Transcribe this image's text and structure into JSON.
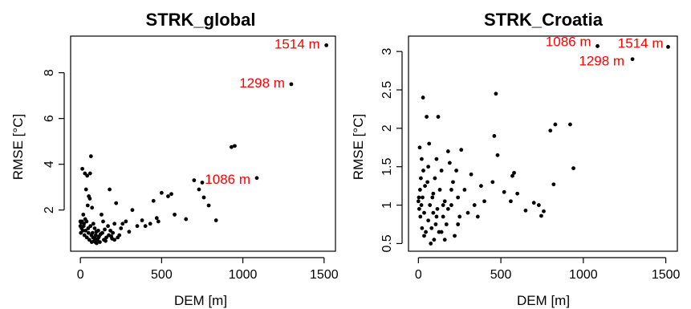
{
  "chart_data": [
    {
      "type": "scatter",
      "title": "STRK_global",
      "xlabel": "DEM [m]",
      "ylabel": "RMSE [°C]",
      "xlim": [
        -60,
        1570
      ],
      "ylim": [
        0.2,
        9.6
      ],
      "xticks": [
        0,
        500,
        1000,
        1500
      ],
      "yticks": [
        2,
        4,
        6,
        8
      ],
      "point_color": "#000000",
      "annotation_color": "#ff0000",
      "annotations": [
        {
          "text": "1514 m",
          "x": 1514,
          "y": 9.2
        },
        {
          "text": "1298 m",
          "x": 1298,
          "y": 7.5
        },
        {
          "text": "1086 m",
          "x": 1086,
          "y": 3.4
        }
      ],
      "points": [
        [
          1514,
          9.2
        ],
        [
          1298,
          7.5
        ],
        [
          1086,
          3.4
        ],
        [
          950,
          4.8
        ],
        [
          930,
          4.75
        ],
        [
          835,
          1.55
        ],
        [
          790,
          2.2
        ],
        [
          760,
          2.55
        ],
        [
          750,
          3.2
        ],
        [
          730,
          2.9
        ],
        [
          700,
          3.3
        ],
        [
          650,
          1.6
        ],
        [
          580,
          1.8
        ],
        [
          560,
          2.7
        ],
        [
          540,
          2.6
        ],
        [
          500,
          2.75
        ],
        [
          480,
          1.5
        ],
        [
          470,
          1.65
        ],
        [
          450,
          2.4
        ],
        [
          430,
          1.4
        ],
        [
          400,
          1.3
        ],
        [
          380,
          1.55
        ],
        [
          350,
          1.3
        ],
        [
          320,
          2.0
        ],
        [
          300,
          1.05
        ],
        [
          280,
          1.5
        ],
        [
          260,
          1.4
        ],
        [
          250,
          1.2
        ],
        [
          240,
          0.9
        ],
        [
          220,
          2.3
        ],
        [
          210,
          1.4
        ],
        [
          200,
          1.0
        ],
        [
          190,
          0.85
        ],
        [
          180,
          2.9
        ],
        [
          170,
          1.3
        ],
        [
          160,
          0.8
        ],
        [
          150,
          1.15
        ],
        [
          145,
          0.7
        ],
        [
          140,
          1.5
        ],
        [
          130,
          1.8
        ],
        [
          125,
          0.95
        ],
        [
          120,
          0.6
        ],
        [
          115,
          0.85
        ],
        [
          110,
          1.1
        ],
        [
          105,
          0.7
        ],
        [
          100,
          0.55
        ],
        [
          95,
          0.9
        ],
        [
          90,
          0.75
        ],
        [
          88,
          1.2
        ],
        [
          85,
          0.65
        ],
        [
          80,
          1.4
        ],
        [
          78,
          0.8
        ],
        [
          75,
          1.0
        ],
        [
          72,
          2.1
        ],
        [
          70,
          0.6
        ],
        [
          68,
          0.9
        ],
        [
          65,
          4.35
        ],
        [
          62,
          1.3
        ],
        [
          60,
          3.6
        ],
        [
          58,
          2.5
        ],
        [
          55,
          0.7
        ],
        [
          52,
          2.6
        ],
        [
          50,
          1.0
        ],
        [
          48,
          1.2
        ],
        [
          45,
          2.2
        ],
        [
          42,
          3.5
        ],
        [
          40,
          0.8
        ],
        [
          38,
          1.5
        ],
        [
          35,
          2.9
        ],
        [
          32,
          1.1
        ],
        [
          30,
          1.6
        ],
        [
          28,
          3.6
        ],
        [
          25,
          0.9
        ],
        [
          22,
          1.4
        ],
        [
          20,
          1.3
        ],
        [
          18,
          1.8
        ],
        [
          15,
          1.1
        ],
        [
          12,
          3.8
        ],
        [
          10,
          1.5
        ],
        [
          8,
          1.2
        ],
        [
          5,
          1.45
        ],
        [
          3,
          1.0
        ],
        [
          0,
          1.3
        ],
        [
          0,
          1.5
        ],
        [
          210,
          0.7
        ],
        [
          230,
          0.8
        ],
        [
          135,
          1.0
        ],
        [
          155,
          0.65
        ],
        [
          175,
          0.9
        ],
        [
          112,
          0.8
        ],
        [
          98,
          1.05
        ],
        [
          92,
          0.6
        ],
        [
          185,
          1.1
        ],
        [
          195,
          0.75
        ]
      ]
    },
    {
      "type": "scatter",
      "title": "STRK_Croatia",
      "xlabel": "DEM [m]",
      "ylabel": "RMSE [°C]",
      "xlim": [
        -60,
        1570
      ],
      "ylim": [
        0.4,
        3.2
      ],
      "xticks": [
        0,
        500,
        1000,
        1500
      ],
      "yticks": [
        0.5,
        1.0,
        1.5,
        2.0,
        2.5,
        3.0
      ],
      "point_color": "#000000",
      "annotation_color": "#ff0000",
      "annotations": [
        {
          "text": "1086 m",
          "x": 1086,
          "y": 3.07
        },
        {
          "text": "1514 m",
          "x": 1514,
          "y": 3.06
        },
        {
          "text": "1298 m",
          "x": 1298,
          "y": 2.9
        }
      ],
      "points": [
        [
          1514,
          3.06
        ],
        [
          1086,
          3.07
        ],
        [
          1298,
          2.9
        ],
        [
          940,
          1.48
        ],
        [
          920,
          2.05
        ],
        [
          830,
          2.05
        ],
        [
          800,
          1.97
        ],
        [
          820,
          1.27
        ],
        [
          760,
          0.92
        ],
        [
          745,
          0.86
        ],
        [
          730,
          1.0
        ],
        [
          700,
          1.03
        ],
        [
          650,
          0.93
        ],
        [
          600,
          1.15
        ],
        [
          580,
          1.42
        ],
        [
          570,
          1.38
        ],
        [
          560,
          1.05
        ],
        [
          520,
          1.17
        ],
        [
          480,
          1.65
        ],
        [
          470,
          2.45
        ],
        [
          460,
          1.9
        ],
        [
          450,
          1.3
        ],
        [
          400,
          1.05
        ],
        [
          380,
          1.25
        ],
        [
          360,
          0.85
        ],
        [
          340,
          1.0
        ],
        [
          320,
          1.4
        ],
        [
          300,
          0.9
        ],
        [
          280,
          1.2
        ],
        [
          260,
          1.72
        ],
        [
          250,
          0.85
        ],
        [
          240,
          1.1
        ],
        [
          230,
          1.45
        ],
        [
          220,
          0.6
        ],
        [
          210,
          1.3
        ],
        [
          200,
          1.0
        ],
        [
          190,
          1.55
        ],
        [
          180,
          1.7
        ],
        [
          170,
          0.75
        ],
        [
          160,
          1.05
        ],
        [
          150,
          0.85
        ],
        [
          140,
          1.45
        ],
        [
          130,
          1.2
        ],
        [
          125,
          0.65
        ],
        [
          120,
          2.15
        ],
        [
          115,
          0.95
        ],
        [
          110,
          1.6
        ],
        [
          105,
          0.75
        ],
        [
          100,
          1.35
        ],
        [
          95,
          0.55
        ],
        [
          90,
          0.9
        ],
        [
          85,
          1.1
        ],
        [
          80,
          0.7
        ],
        [
          75,
          0.5
        ],
        [
          70,
          1.0
        ],
        [
          65,
          1.8
        ],
        [
          60,
          0.8
        ],
        [
          55,
          1.3
        ],
        [
          50,
          2.15
        ],
        [
          45,
          0.65
        ],
        [
          40,
          1.25
        ],
        [
          35,
          0.9
        ],
        [
          30,
          1.45
        ],
        [
          28,
          2.4
        ],
        [
          25,
          1.1
        ],
        [
          22,
          0.7
        ],
        [
          20,
          1.6
        ],
        [
          18,
          1.0
        ],
        [
          15,
          1.35
        ],
        [
          12,
          0.85
        ],
        [
          10,
          1.2
        ],
        [
          8,
          1.75
        ],
        [
          5,
          0.95
        ],
        [
          3,
          1.1
        ],
        [
          0,
          1.05
        ],
        [
          180,
          0.95
        ],
        [
          200,
          1.2
        ],
        [
          140,
          0.65
        ],
        [
          160,
          0.55
        ],
        [
          110,
          0.85
        ],
        [
          90,
          1.15
        ],
        [
          240,
          0.75
        ],
        [
          60,
          1.5
        ],
        [
          35,
          0.6
        ],
        [
          150,
          1.0
        ]
      ]
    }
  ]
}
